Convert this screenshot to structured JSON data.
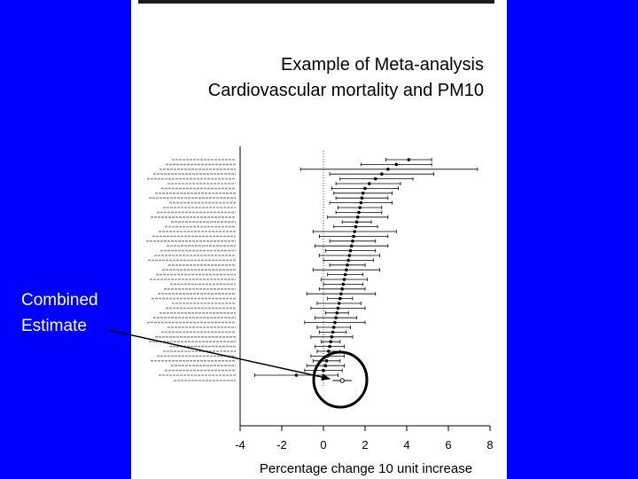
{
  "slide": {
    "title_line1": "Example of Meta-analysis",
    "title_line2": "Cardiovascular mortality and PM10",
    "callout_line1": "Combined",
    "callout_line2": "Estimate",
    "background_color": "#0000ff",
    "panel_color": "#ffffff",
    "highlight_color": "#000000"
  },
  "chart_data": {
    "type": "forest",
    "title": "",
    "xlabel": "Percentage change 10 unit increase",
    "ylabel": "",
    "xlim": [
      -4,
      8
    ],
    "xticks": [
      -4,
      -2,
      0,
      2,
      4,
      6,
      8
    ],
    "reference_line": 0,
    "grid": false,
    "study_labels_legible": false,
    "studies": [
      {
        "estimate": 4.1,
        "lower": 3.0,
        "upper": 5.2
      },
      {
        "estimate": 3.5,
        "lower": 1.8,
        "upper": 5.2
      },
      {
        "estimate": 3.1,
        "lower": -1.1,
        "upper": 7.4
      },
      {
        "estimate": 2.8,
        "lower": 0.3,
        "upper": 5.3
      },
      {
        "estimate": 2.5,
        "lower": 0.8,
        "upper": 4.3
      },
      {
        "estimate": 2.2,
        "lower": 0.6,
        "upper": 3.7
      },
      {
        "estimate": 2.0,
        "lower": 0.4,
        "upper": 3.6
      },
      {
        "estimate": 1.9,
        "lower": 0.5,
        "upper": 3.3
      },
      {
        "estimate": 1.85,
        "lower": 0.6,
        "upper": 3.1
      },
      {
        "estimate": 1.8,
        "lower": 0.3,
        "upper": 3.3
      },
      {
        "estimate": 1.75,
        "lower": 0.7,
        "upper": 2.8
      },
      {
        "estimate": 1.7,
        "lower": 0.6,
        "upper": 2.8
      },
      {
        "estimate": 1.65,
        "lower": 0.2,
        "upper": 3.1
      },
      {
        "estimate": 1.6,
        "lower": 0.9,
        "upper": 2.3
      },
      {
        "estimate": 1.55,
        "lower": 0.5,
        "upper": 2.6
      },
      {
        "estimate": 1.5,
        "lower": -0.5,
        "upper": 3.5
      },
      {
        "estimate": 1.45,
        "lower": -0.2,
        "upper": 3.1
      },
      {
        "estimate": 1.4,
        "lower": 0.3,
        "upper": 2.5
      },
      {
        "estimate": 1.35,
        "lower": -0.4,
        "upper": 3.1
      },
      {
        "estimate": 1.3,
        "lower": 0.1,
        "upper": 2.5
      },
      {
        "estimate": 1.25,
        "lower": -0.2,
        "upper": 2.7
      },
      {
        "estimate": 1.2,
        "lower": 0.0,
        "upper": 2.4
      },
      {
        "estimate": 1.15,
        "lower": 0.3,
        "upper": 2.0
      },
      {
        "estimate": 1.1,
        "lower": -0.5,
        "upper": 2.7
      },
      {
        "estimate": 1.05,
        "lower": 0.2,
        "upper": 1.9
      },
      {
        "estimate": 1.0,
        "lower": -0.1,
        "upper": 2.1
      },
      {
        "estimate": 0.95,
        "lower": 0.0,
        "upper": 1.9
      },
      {
        "estimate": 0.9,
        "lower": -0.2,
        "upper": 2.0
      },
      {
        "estimate": 0.85,
        "lower": -0.8,
        "upper": 2.5
      },
      {
        "estimate": 0.8,
        "lower": 0.2,
        "upper": 1.4
      },
      {
        "estimate": 0.75,
        "lower": -0.3,
        "upper": 1.8
      },
      {
        "estimate": 0.7,
        "lower": -0.6,
        "upper": 2.0
      },
      {
        "estimate": 0.65,
        "lower": 0.1,
        "upper": 1.2
      },
      {
        "estimate": 0.6,
        "lower": -0.4,
        "upper": 1.6
      },
      {
        "estimate": 0.55,
        "lower": -0.9,
        "upper": 2.0
      },
      {
        "estimate": 0.5,
        "lower": -0.3,
        "upper": 1.3
      },
      {
        "estimate": 0.45,
        "lower": -0.2,
        "upper": 1.1
      },
      {
        "estimate": 0.4,
        "lower": -0.6,
        "upper": 1.4
      },
      {
        "estimate": 0.35,
        "lower": -0.1,
        "upper": 0.8
      },
      {
        "estimate": 0.3,
        "lower": -0.4,
        "upper": 1.0
      },
      {
        "estimate": 0.25,
        "lower": -0.3,
        "upper": 0.8
      },
      {
        "estimate": 0.2,
        "lower": -0.6,
        "upper": 1.0
      },
      {
        "estimate": 0.15,
        "lower": -0.5,
        "upper": 0.8
      },
      {
        "estimate": 0.1,
        "lower": -0.8,
        "upper": 1.0
      },
      {
        "estimate": 0.0,
        "lower": -0.9,
        "upper": 0.9
      },
      {
        "estimate": -1.3,
        "lower": -3.3,
        "upper": 0.7
      }
    ],
    "combined": {
      "estimate": 0.9,
      "lower": 0.7,
      "upper": 1.1
    }
  }
}
